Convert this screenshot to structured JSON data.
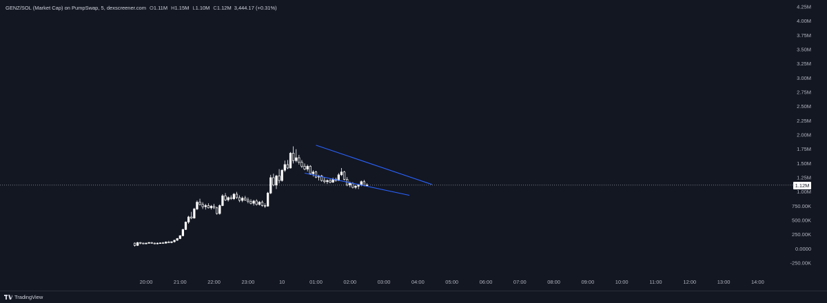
{
  "header": {
    "symbol_text": "GENZ/SOL (Market Cap) on PumpSwap, 5, dexscreener.com",
    "open_label": "O",
    "open_value": "1.11M",
    "high_label": "H",
    "high_value": "1.15M",
    "low_label": "L",
    "low_value": "1.10M",
    "close_label": "C",
    "close_value": "1.12M",
    "change_text": "3,444.17 (+0.31%)"
  },
  "price_axis": {
    "labels": [
      "4.25M",
      "4.00M",
      "3.75M",
      "3.50M",
      "3.25M",
      "3.00M",
      "2.75M",
      "2.50M",
      "2.25M",
      "2.00M",
      "1.75M",
      "1.50M",
      "1.25M",
      "1.00M",
      "750.00K",
      "500.00K",
      "250.00K",
      "0.0000",
      "-250.00K"
    ],
    "current_price_label": "1.12M"
  },
  "time_axis": {
    "labels": [
      "20:00",
      "21:00",
      "22:00",
      "23:00",
      "10",
      "01:00",
      "02:00",
      "03:00",
      "04:00",
      "05:00",
      "06:00",
      "07:00",
      "08:00",
      "09:00",
      "10:00",
      "11:00",
      "12:00",
      "13:00",
      "14:00"
    ]
  },
  "footer": {
    "brand": "TradingView"
  },
  "colors": {
    "background": "#131722",
    "candle": "#ffffff",
    "trendline": "#2962ff",
    "axis_text": "#b2b5be",
    "dotted_line": "#787b86"
  },
  "chart_data": {
    "type": "candlestick",
    "title": "GENZ/SOL (Market Cap) on PumpSwap, 5, dexscreener.com",
    "y_unit": "market cap",
    "ylim": [
      -350000,
      4300000
    ],
    "x_start": "19:40",
    "x_step_minutes": 5,
    "last_price": 1120000,
    "ohlc": [
      [
        100000,
        110000,
        40000,
        60000
      ],
      [
        60000,
        120000,
        50000,
        110000
      ],
      [
        110000,
        120000,
        80000,
        100000
      ],
      [
        100000,
        110000,
        80000,
        90000
      ],
      [
        90000,
        110000,
        80000,
        100000
      ],
      [
        100000,
        120000,
        90000,
        110000
      ],
      [
        110000,
        120000,
        90000,
        100000
      ],
      [
        100000,
        110000,
        80000,
        90000
      ],
      [
        90000,
        110000,
        80000,
        100000
      ],
      [
        100000,
        110000,
        90000,
        105000
      ],
      [
        105000,
        120000,
        90000,
        100000
      ],
      [
        100000,
        130000,
        90000,
        120000
      ],
      [
        120000,
        140000,
        100000,
        110000
      ],
      [
        110000,
        130000,
        100000,
        125000
      ],
      [
        125000,
        160000,
        110000,
        150000
      ],
      [
        150000,
        190000,
        140000,
        180000
      ],
      [
        180000,
        240000,
        170000,
        230000
      ],
      [
        230000,
        350000,
        220000,
        340000
      ],
      [
        340000,
        480000,
        330000,
        470000
      ],
      [
        470000,
        580000,
        440000,
        560000
      ],
      [
        560000,
        650000,
        520000,
        540000
      ],
      [
        540000,
        720000,
        530000,
        700000
      ],
      [
        700000,
        850000,
        680000,
        820000
      ],
      [
        820000,
        880000,
        760000,
        780000
      ],
      [
        780000,
        820000,
        700000,
        740000
      ],
      [
        740000,
        790000,
        690000,
        760000
      ],
      [
        760000,
        800000,
        710000,
        720000
      ],
      [
        720000,
        770000,
        690000,
        750000
      ],
      [
        750000,
        790000,
        700000,
        720000
      ],
      [
        720000,
        740000,
        600000,
        620000
      ],
      [
        620000,
        780000,
        600000,
        760000
      ],
      [
        760000,
        960000,
        750000,
        930000
      ],
      [
        930000,
        980000,
        840000,
        860000
      ],
      [
        860000,
        920000,
        830000,
        900000
      ],
      [
        900000,
        940000,
        860000,
        880000
      ],
      [
        880000,
        980000,
        860000,
        960000
      ],
      [
        960000,
        1000000,
        880000,
        900000
      ],
      [
        900000,
        940000,
        820000,
        850000
      ],
      [
        850000,
        920000,
        820000,
        890000
      ],
      [
        890000,
        930000,
        840000,
        860000
      ],
      [
        860000,
        900000,
        800000,
        830000
      ],
      [
        830000,
        870000,
        780000,
        800000
      ],
      [
        800000,
        860000,
        760000,
        840000
      ],
      [
        840000,
        870000,
        760000,
        780000
      ],
      [
        780000,
        840000,
        760000,
        820000
      ],
      [
        820000,
        850000,
        740000,
        760000
      ],
      [
        760000,
        800000,
        720000,
        750000
      ],
      [
        750000,
        1000000,
        740000,
        980000
      ],
      [
        980000,
        1300000,
        960000,
        1250000
      ],
      [
        1250000,
        1320000,
        1100000,
        1120000
      ],
      [
        1120000,
        1300000,
        1050000,
        1280000
      ],
      [
        1280000,
        1400000,
        1150000,
        1200000
      ],
      [
        1200000,
        1400000,
        1180000,
        1380000
      ],
      [
        1380000,
        1550000,
        1350000,
        1480000
      ],
      [
        1480000,
        1560000,
        1400000,
        1420000
      ],
      [
        1420000,
        1700000,
        1410000,
        1680000
      ],
      [
        1680000,
        1800000,
        1500000,
        1550000
      ],
      [
        1550000,
        1750000,
        1520000,
        1600000
      ],
      [
        1600000,
        1650000,
        1480000,
        1520000
      ],
      [
        1520000,
        1560000,
        1420000,
        1450000
      ],
      [
        1450000,
        1500000,
        1380000,
        1400000
      ],
      [
        1400000,
        1480000,
        1360000,
        1450000
      ],
      [
        1450000,
        1470000,
        1300000,
        1320000
      ],
      [
        1320000,
        1380000,
        1270000,
        1350000
      ],
      [
        1350000,
        1370000,
        1240000,
        1260000
      ],
      [
        1260000,
        1300000,
        1200000,
        1280000
      ],
      [
        1280000,
        1300000,
        1180000,
        1200000
      ],
      [
        1200000,
        1260000,
        1150000,
        1180000
      ],
      [
        1180000,
        1220000,
        1140000,
        1200000
      ],
      [
        1200000,
        1230000,
        1150000,
        1170000
      ],
      [
        1170000,
        1250000,
        1160000,
        1220000
      ],
      [
        1220000,
        1250000,
        1180000,
        1200000
      ],
      [
        1200000,
        1330000,
        1190000,
        1300000
      ],
      [
        1300000,
        1420000,
        1280000,
        1350000
      ],
      [
        1350000,
        1370000,
        1200000,
        1220000
      ],
      [
        1220000,
        1260000,
        1100000,
        1120000
      ],
      [
        1120000,
        1180000,
        1080000,
        1150000
      ],
      [
        1150000,
        1170000,
        1060000,
        1080000
      ],
      [
        1080000,
        1120000,
        1050000,
        1100000
      ],
      [
        1100000,
        1140000,
        1050000,
        1130000
      ],
      [
        1130000,
        1200000,
        1100000,
        1180000
      ],
      [
        1180000,
        1210000,
        1100000,
        1110000
      ],
      [
        1110000,
        1150000,
        1100000,
        1120000
      ]
    ],
    "trendlines": [
      {
        "from": [
          "01:00",
          1820000
        ],
        "to": [
          "04:25",
          1130000
        ]
      },
      {
        "from": [
          "00:40",
          1330000
        ],
        "to": [
          "03:45",
          940000
        ]
      }
    ]
  }
}
